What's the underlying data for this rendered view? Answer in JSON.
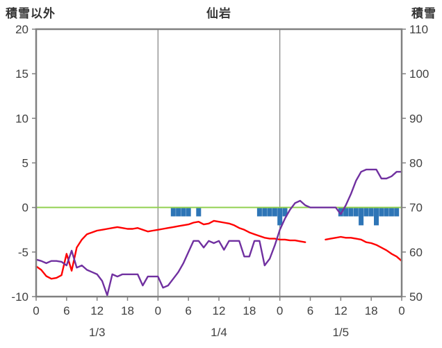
{
  "header": {
    "left_axis_title": "積雪以外",
    "chart_title": "仙岩",
    "right_axis_title": "積雪"
  },
  "chart_data": {
    "type": "line",
    "title": "仙岩",
    "text_color": "#404040",
    "grid_color": "#808080",
    "zero_line_color": "#92d050",
    "left_axis": {
      "label": "積雪以外",
      "min": -10,
      "max": 20,
      "ticks": [
        20,
        15,
        10,
        5,
        0,
        -5,
        -10
      ]
    },
    "right_axis": {
      "label": "積雪",
      "min": 50,
      "max": 110,
      "ticks": [
        110,
        100,
        90,
        80,
        70,
        60,
        50
      ]
    },
    "x_axis": {
      "hours_total": 72,
      "tick_interval": 6,
      "tick_labels": [
        "0",
        "6",
        "12",
        "18",
        "0",
        "6",
        "12",
        "18",
        "0",
        "6",
        "12",
        "18",
        "0"
      ],
      "day_gridline_hours": [
        24,
        48
      ],
      "day_labels": [
        {
          "label": "1/3",
          "hour": 12
        },
        {
          "label": "1/4",
          "hour": 36
        },
        {
          "label": "1/5",
          "hour": 60
        }
      ]
    },
    "series": [
      {
        "name": "blue-bars",
        "kind": "bar",
        "axis": "left",
        "color": "#2e75b6",
        "values": [
          0,
          0,
          0,
          0,
          0,
          0,
          0,
          0,
          0,
          0,
          0,
          0,
          0,
          0,
          0,
          0,
          0,
          0,
          0,
          0,
          0,
          0,
          0,
          0,
          0,
          0,
          0,
          1,
          1,
          1,
          1,
          0,
          1,
          0,
          0,
          0,
          0,
          0,
          0,
          0,
          0,
          0,
          0,
          0,
          1,
          1,
          1,
          1,
          2,
          1,
          0,
          0,
          0,
          0,
          0,
          0,
          0,
          0,
          0,
          0,
          1,
          1,
          1,
          1,
          2,
          1,
          1,
          2,
          1,
          1,
          1,
          1,
          0
        ]
      },
      {
        "name": "red-line",
        "kind": "line",
        "axis": "left",
        "color": "#ff0000",
        "values": [
          -6.6,
          -7.0,
          -7.7,
          -8.0,
          -7.9,
          -7.6,
          -5.2,
          -7.1,
          -4.5,
          -3.6,
          -3.0,
          -2.8,
          -2.6,
          -2.5,
          -2.4,
          -2.3,
          -2.2,
          -2.3,
          -2.4,
          -2.4,
          -2.3,
          -2.5,
          -2.7,
          -2.6,
          -2.5,
          -2.4,
          -2.3,
          -2.2,
          -2.1,
          -2.0,
          -1.9,
          -1.7,
          -1.6,
          -1.9,
          -1.8,
          -1.5,
          -1.6,
          -1.7,
          -1.8,
          -2.0,
          -2.3,
          -2.5,
          -2.8,
          -3.0,
          -3.2,
          -3.4,
          -3.5,
          -3.5,
          -3.6,
          -3.6,
          -3.7,
          -3.7,
          -3.8,
          -3.9,
          null,
          null,
          null,
          -3.6,
          -3.5,
          -3.4,
          -3.3,
          -3.4,
          -3.4,
          -3.5,
          -3.6,
          -3.9,
          -4.0,
          -4.2,
          -4.5,
          -4.8,
          -5.2,
          -5.5,
          -6.0
        ]
      },
      {
        "name": "purple-line",
        "kind": "line",
        "axis": "right",
        "color": "#7030a0",
        "values": [
          58.3,
          58.0,
          57.5,
          58.0,
          58.0,
          57.8,
          57.0,
          60.3,
          56.5,
          57.0,
          56.0,
          55.5,
          55.0,
          53.5,
          50.3,
          55.0,
          54.5,
          55.0,
          55.0,
          55.0,
          55.0,
          52.5,
          54.5,
          54.5,
          54.5,
          52.0,
          52.5,
          54.0,
          55.5,
          57.5,
          60.0,
          62.5,
          62.5,
          61.0,
          62.5,
          62.0,
          62.5,
          60.5,
          62.5,
          62.5,
          62.5,
          59.0,
          59.0,
          62.5,
          62.5,
          57.0,
          58.5,
          61.5,
          65.0,
          67.5,
          69.5,
          71.0,
          71.5,
          70.5,
          70.0,
          70.0,
          70.0,
          70.0,
          70.0,
          70.0,
          68.5,
          70.5,
          73.0,
          76.0,
          78.0,
          78.5,
          78.5,
          78.5,
          76.5,
          76.5,
          77.0,
          78.0,
          78.0
        ]
      }
    ]
  }
}
